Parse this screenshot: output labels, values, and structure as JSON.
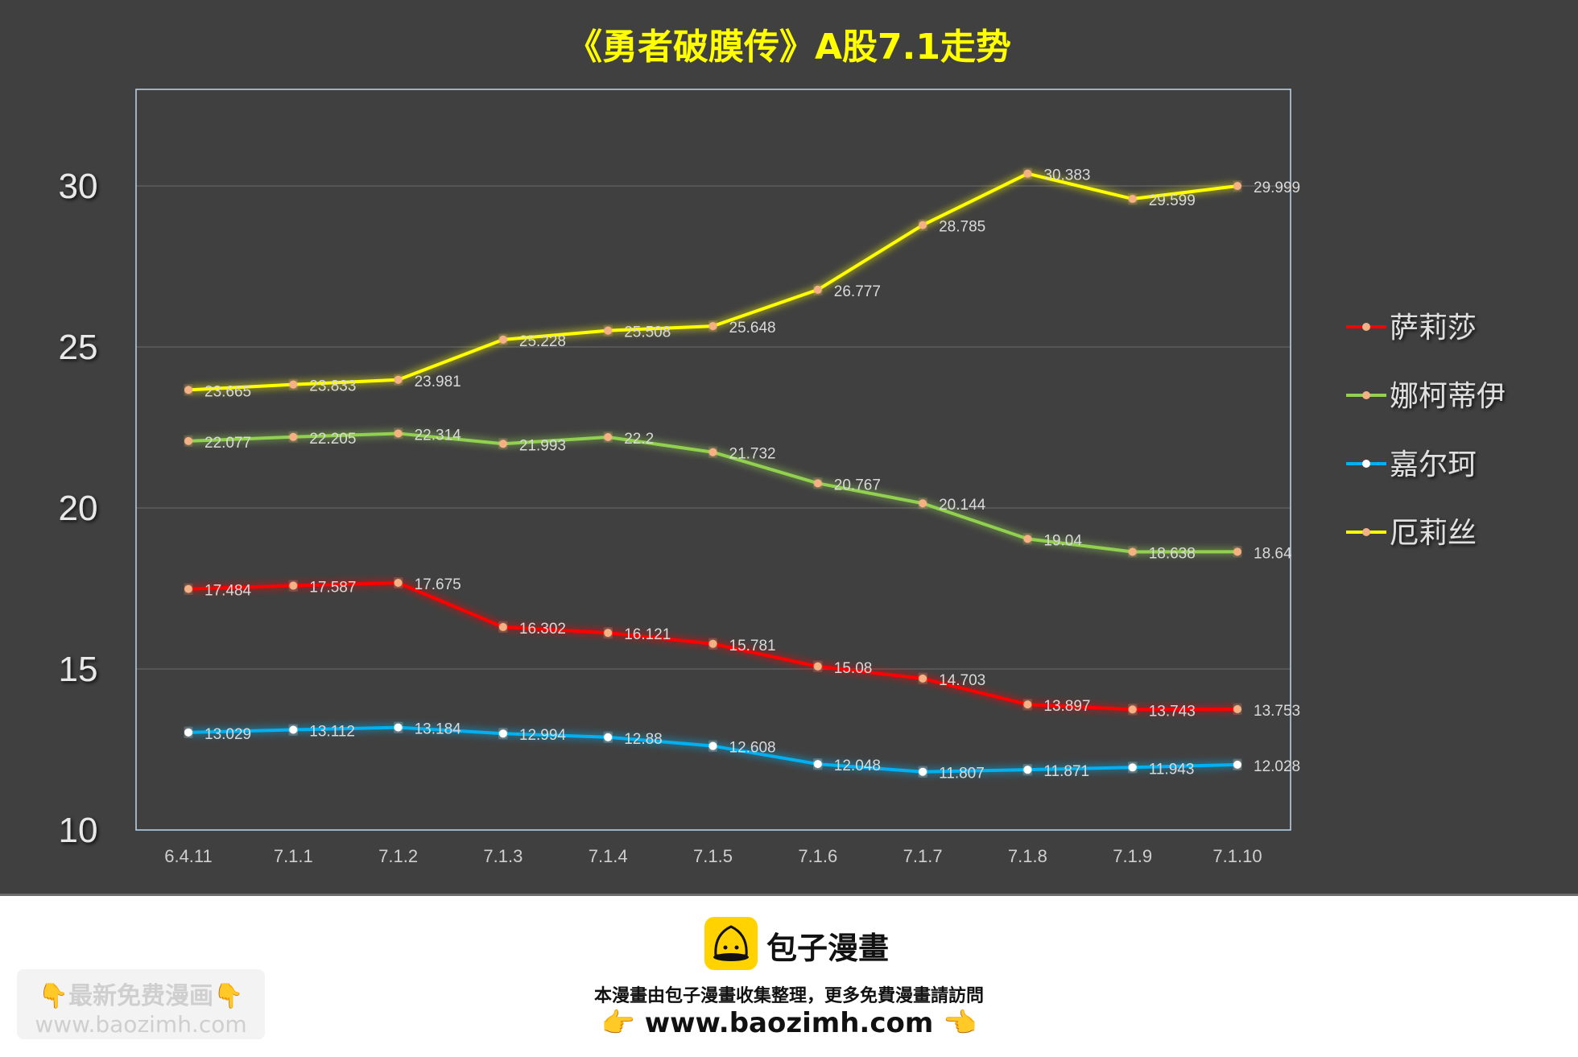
{
  "chart_data": {
    "type": "line",
    "title": "《勇者破膜传》A股7.1走势",
    "xlabel": "",
    "ylabel": "",
    "categories": [
      "6.4.11",
      "7.1.1",
      "7.1.2",
      "7.1.3",
      "7.1.4",
      "7.1.5",
      "7.1.6",
      "7.1.7",
      "7.1.8",
      "7.1.9",
      "7.1.10"
    ],
    "ylim": [
      10,
      33
    ],
    "yticks": [
      10,
      15,
      20,
      25,
      30
    ],
    "grid": true,
    "legend_position": "right",
    "series": [
      {
        "name": "萨莉莎",
        "color": "#FF0000",
        "marker": "#F4B183",
        "values": [
          17.484,
          17.587,
          17.675,
          16.302,
          16.121,
          15.781,
          15.08,
          14.703,
          13.897,
          13.743,
          13.753
        ]
      },
      {
        "name": "娜柯蒂伊",
        "color": "#92D050",
        "marker": "#F4B183",
        "values": [
          22.077,
          22.205,
          22.314,
          21.993,
          22.2,
          21.732,
          20.767,
          20.144,
          19.04,
          18.638,
          18.64
        ]
      },
      {
        "name": "嘉尔珂",
        "color": "#00B0F0",
        "marker": "#FFFFFF",
        "values": [
          13.029,
          13.112,
          13.184,
          12.994,
          12.88,
          12.608,
          12.048,
          11.807,
          11.871,
          11.943,
          12.028
        ]
      },
      {
        "name": "厄莉丝",
        "color": "#FFFF00",
        "marker": "#F4B183",
        "values": [
          23.665,
          23.833,
          23.981,
          25.228,
          25.508,
          25.648,
          26.777,
          28.785,
          30.383,
          29.599,
          29.999
        ]
      }
    ]
  },
  "footer": {
    "brand": "包子漫畫",
    "notice": "本漫畫由包子漫畫收集整理，更多免費漫畫請訪問",
    "url": "www.baozimh.com",
    "hand_left": "👉",
    "hand_right": "👈",
    "watermark_text": "最新免费漫画",
    "watermark_hand": "👇",
    "watermark_url": "www.baozimh.com"
  }
}
